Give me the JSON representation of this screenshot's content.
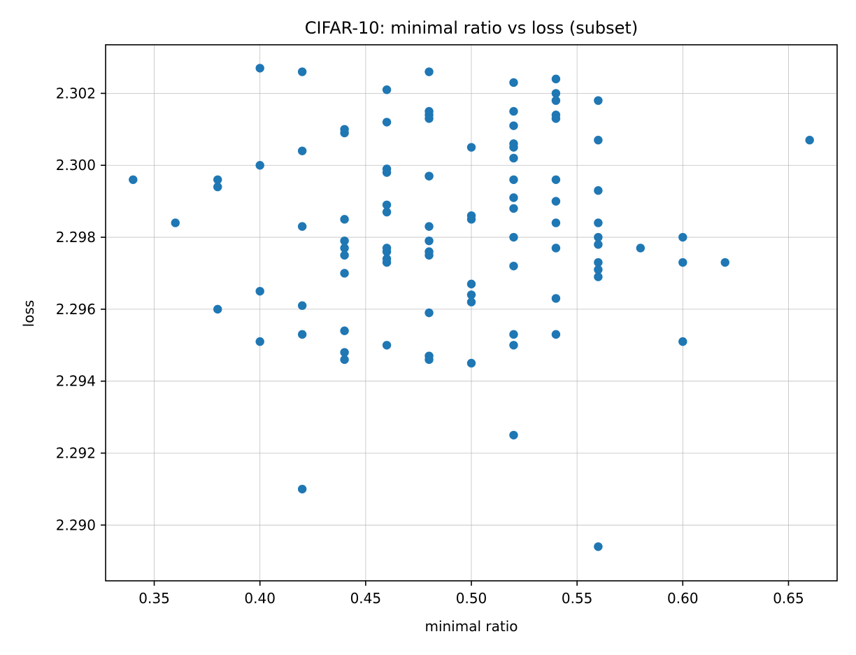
{
  "chart_data": {
    "type": "scatter",
    "title": "CIFAR-10: minimal ratio vs loss (subset)",
    "xlabel": "minimal ratio",
    "ylabel": "loss",
    "xlim": [
      0.327,
      0.673
    ],
    "ylim": [
      2.28845,
      2.30335
    ],
    "xticks": [
      0.35,
      0.4,
      0.45,
      0.5,
      0.55,
      0.6,
      0.65
    ],
    "xtick_labels": [
      "0.35",
      "0.40",
      "0.45",
      "0.50",
      "0.55",
      "0.60",
      "0.65"
    ],
    "yticks": [
      2.29,
      2.292,
      2.294,
      2.296,
      2.298,
      2.3,
      2.302
    ],
    "ytick_labels": [
      "2.290",
      "2.292",
      "2.294",
      "2.296",
      "2.298",
      "2.300",
      "2.302"
    ],
    "grid": true,
    "color": "#1f77b4",
    "points": [
      {
        "x": 0.34,
        "y": 2.2996
      },
      {
        "x": 0.36,
        "y": 2.2984
      },
      {
        "x": 0.38,
        "y": 2.2996
      },
      {
        "x": 0.38,
        "y": 2.2994
      },
      {
        "x": 0.38,
        "y": 2.296
      },
      {
        "x": 0.4,
        "y": 2.3027
      },
      {
        "x": 0.4,
        "y": 2.3
      },
      {
        "x": 0.4,
        "y": 2.2965
      },
      {
        "x": 0.4,
        "y": 2.2951
      },
      {
        "x": 0.42,
        "y": 2.3026
      },
      {
        "x": 0.42,
        "y": 2.3004
      },
      {
        "x": 0.42,
        "y": 2.2983
      },
      {
        "x": 0.42,
        "y": 2.2961
      },
      {
        "x": 0.42,
        "y": 2.2953
      },
      {
        "x": 0.42,
        "y": 2.291
      },
      {
        "x": 0.44,
        "y": 2.301
      },
      {
        "x": 0.44,
        "y": 2.3009
      },
      {
        "x": 0.44,
        "y": 2.2985
      },
      {
        "x": 0.44,
        "y": 2.2979
      },
      {
        "x": 0.44,
        "y": 2.2977
      },
      {
        "x": 0.44,
        "y": 2.2975
      },
      {
        "x": 0.44,
        "y": 2.297
      },
      {
        "x": 0.44,
        "y": 2.2954
      },
      {
        "x": 0.44,
        "y": 2.2948
      },
      {
        "x": 0.44,
        "y": 2.2946
      },
      {
        "x": 0.46,
        "y": 2.3021
      },
      {
        "x": 0.46,
        "y": 2.3012
      },
      {
        "x": 0.46,
        "y": 2.2999
      },
      {
        "x": 0.46,
        "y": 2.2998
      },
      {
        "x": 0.46,
        "y": 2.2989
      },
      {
        "x": 0.46,
        "y": 2.2987
      },
      {
        "x": 0.46,
        "y": 2.2977
      },
      {
        "x": 0.46,
        "y": 2.2976
      },
      {
        "x": 0.46,
        "y": 2.2974
      },
      {
        "x": 0.46,
        "y": 2.2973
      },
      {
        "x": 0.46,
        "y": 2.295
      },
      {
        "x": 0.48,
        "y": 2.3026
      },
      {
        "x": 0.48,
        "y": 2.3015
      },
      {
        "x": 0.48,
        "y": 2.3014
      },
      {
        "x": 0.48,
        "y": 2.3013
      },
      {
        "x": 0.48,
        "y": 2.2997
      },
      {
        "x": 0.48,
        "y": 2.2997
      },
      {
        "x": 0.48,
        "y": 2.2983
      },
      {
        "x": 0.48,
        "y": 2.2979
      },
      {
        "x": 0.48,
        "y": 2.2976
      },
      {
        "x": 0.48,
        "y": 2.2975
      },
      {
        "x": 0.48,
        "y": 2.2959
      },
      {
        "x": 0.48,
        "y": 2.2947
      },
      {
        "x": 0.48,
        "y": 2.2946
      },
      {
        "x": 0.5,
        "y": 2.3005
      },
      {
        "x": 0.5,
        "y": 2.2986
      },
      {
        "x": 0.5,
        "y": 2.2985
      },
      {
        "x": 0.5,
        "y": 2.2967
      },
      {
        "x": 0.5,
        "y": 2.2964
      },
      {
        "x": 0.5,
        "y": 2.2962
      },
      {
        "x": 0.5,
        "y": 2.2945
      },
      {
        "x": 0.52,
        "y": 2.3023
      },
      {
        "x": 0.52,
        "y": 2.3015
      },
      {
        "x": 0.52,
        "y": 2.3011
      },
      {
        "x": 0.52,
        "y": 2.3006
      },
      {
        "x": 0.52,
        "y": 2.3005
      },
      {
        "x": 0.52,
        "y": 2.3002
      },
      {
        "x": 0.52,
        "y": 2.2996
      },
      {
        "x": 0.52,
        "y": 2.2991
      },
      {
        "x": 0.52,
        "y": 2.2988
      },
      {
        "x": 0.52,
        "y": 2.298
      },
      {
        "x": 0.52,
        "y": 2.2972
      },
      {
        "x": 0.52,
        "y": 2.2953
      },
      {
        "x": 0.52,
        "y": 2.295
      },
      {
        "x": 0.52,
        "y": 2.2925
      },
      {
        "x": 0.54,
        "y": 2.3024
      },
      {
        "x": 0.54,
        "y": 2.302
      },
      {
        "x": 0.54,
        "y": 2.3018
      },
      {
        "x": 0.54,
        "y": 2.3014
      },
      {
        "x": 0.54,
        "y": 2.3013
      },
      {
        "x": 0.54,
        "y": 2.2996
      },
      {
        "x": 0.54,
        "y": 2.299
      },
      {
        "x": 0.54,
        "y": 2.2984
      },
      {
        "x": 0.54,
        "y": 2.2977
      },
      {
        "x": 0.54,
        "y": 2.2963
      },
      {
        "x": 0.54,
        "y": 2.2953
      },
      {
        "x": 0.56,
        "y": 2.3018
      },
      {
        "x": 0.56,
        "y": 2.3007
      },
      {
        "x": 0.56,
        "y": 2.2993
      },
      {
        "x": 0.56,
        "y": 2.2984
      },
      {
        "x": 0.56,
        "y": 2.298
      },
      {
        "x": 0.56,
        "y": 2.2978
      },
      {
        "x": 0.56,
        "y": 2.2973
      },
      {
        "x": 0.56,
        "y": 2.2971
      },
      {
        "x": 0.56,
        "y": 2.2969
      },
      {
        "x": 0.56,
        "y": 2.2894
      },
      {
        "x": 0.58,
        "y": 2.2977
      },
      {
        "x": 0.6,
        "y": 2.298
      },
      {
        "x": 0.6,
        "y": 2.2973
      },
      {
        "x": 0.6,
        "y": 2.2951
      },
      {
        "x": 0.62,
        "y": 2.2973
      },
      {
        "x": 0.66,
        "y": 2.3007
      }
    ]
  }
}
